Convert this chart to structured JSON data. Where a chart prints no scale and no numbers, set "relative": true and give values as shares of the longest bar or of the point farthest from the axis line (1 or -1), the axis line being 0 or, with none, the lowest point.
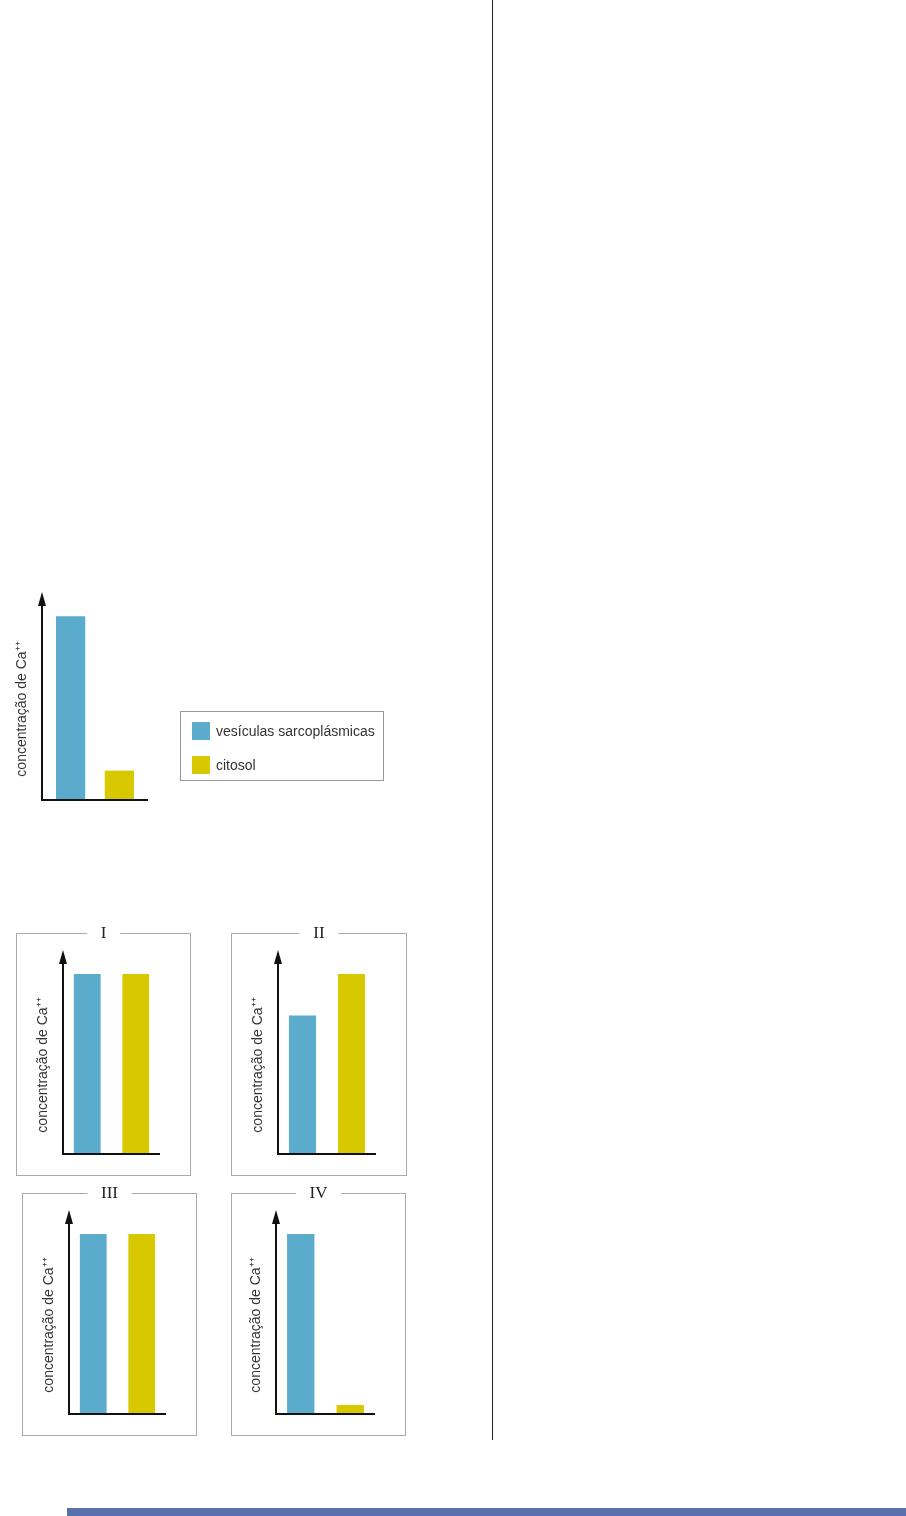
{
  "chart_data": [
    {
      "type": "bar",
      "ylabel": "concentração de Ca⁺⁺",
      "categories": [
        null
      ],
      "relative": true,
      "legend": "right",
      "series": [
        {
          "name": "vesículas sarcoplásmicas",
          "color": "#5aabcc",
          "values": [
            1
          ]
        },
        {
          "name": "citosol",
          "color": "#d8c800",
          "values": [
            0.16
          ]
        }
      ]
    },
    {
      "type": "bar",
      "title": "I",
      "ylabel": "concentração de Ca⁺⁺",
      "categories": [
        null,
        null
      ],
      "relative": true,
      "values": [
        1,
        1
      ],
      "colors": [
        "#5aabcc",
        "#d8c800"
      ]
    },
    {
      "type": "bar",
      "title": "II",
      "ylabel": "concentração de Ca⁺⁺",
      "categories": [
        null,
        null
      ],
      "relative": true,
      "values": [
        0.77,
        1
      ],
      "colors": [
        "#5aabcc",
        "#d8c800"
      ]
    },
    {
      "type": "bar",
      "title": "III",
      "ylabel": "concentração de Ca⁺⁺",
      "categories": [
        null,
        null
      ],
      "relative": true,
      "values": [
        1,
        1
      ],
      "colors": [
        "#5aabcc",
        "#d8c800"
      ]
    },
    {
      "type": "bar",
      "title": "IV",
      "ylabel": "concentração de Ca⁺⁺",
      "categories": [
        null,
        null
      ],
      "relative": true,
      "values": [
        1,
        0.05
      ],
      "colors": [
        "#5aabcc",
        "#d8c800"
      ]
    }
  ]
}
